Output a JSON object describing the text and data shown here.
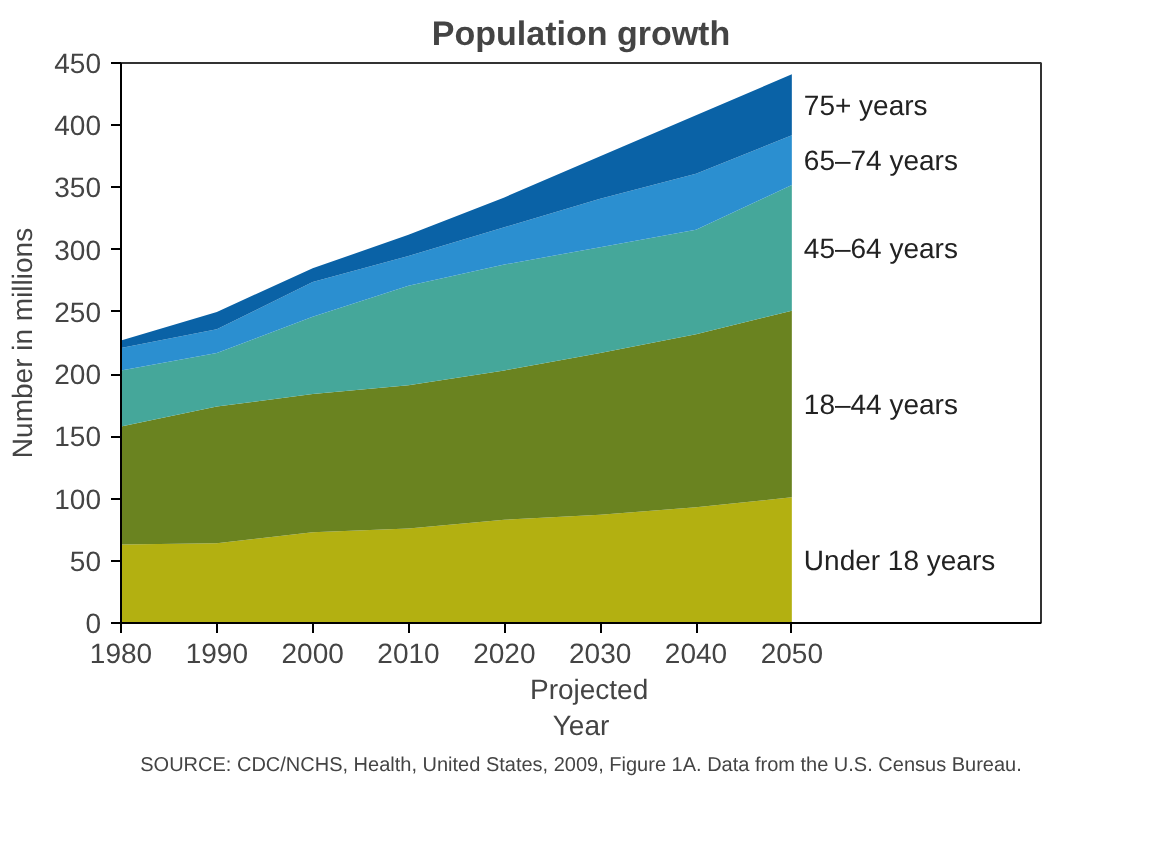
{
  "chart_data": {
    "type": "area",
    "stacked": true,
    "title": "Population growth",
    "xlabel": "Year",
    "ylabel": "Number in millions",
    "x": [
      1980,
      1990,
      2000,
      2010,
      2020,
      2030,
      2040,
      2050
    ],
    "xlim": [
      1980,
      2076
    ],
    "xticks": [
      1980,
      1990,
      2000,
      2010,
      2020,
      2030,
      2040,
      2050
    ],
    "ylim": [
      0,
      450
    ],
    "yticks": [
      0,
      50,
      100,
      150,
      200,
      250,
      300,
      350,
      400,
      450
    ],
    "grid": false,
    "legend": false,
    "series": [
      {
        "name": "Under 18 years",
        "color": "#b3b011",
        "values": [
          63,
          64,
          73,
          76,
          83,
          87,
          93,
          101
        ]
      },
      {
        "name": "18–44 years",
        "color": "#6a8320",
        "values": [
          95,
          110,
          111,
          115,
          120,
          130,
          139,
          150
        ]
      },
      {
        "name": "45–64 years",
        "color": "#45a79a",
        "values": [
          45,
          43,
          62,
          80,
          85,
          85,
          84,
          101
        ]
      },
      {
        "name": "65–74 years",
        "color": "#2b8fd0",
        "values": [
          18,
          19,
          28,
          24,
          30,
          39,
          45,
          40
        ]
      },
      {
        "name": "75+ years",
        "color": "#0a62a6",
        "values": [
          6,
          14,
          11,
          17,
          24,
          34,
          47,
          49
        ]
      }
    ],
    "annotations": [
      "Projected",
      "SOURCE: CDC/NCHS, Health, United States, 2009, Figure 1A. Data from the U.S. Census Bureau."
    ]
  }
}
